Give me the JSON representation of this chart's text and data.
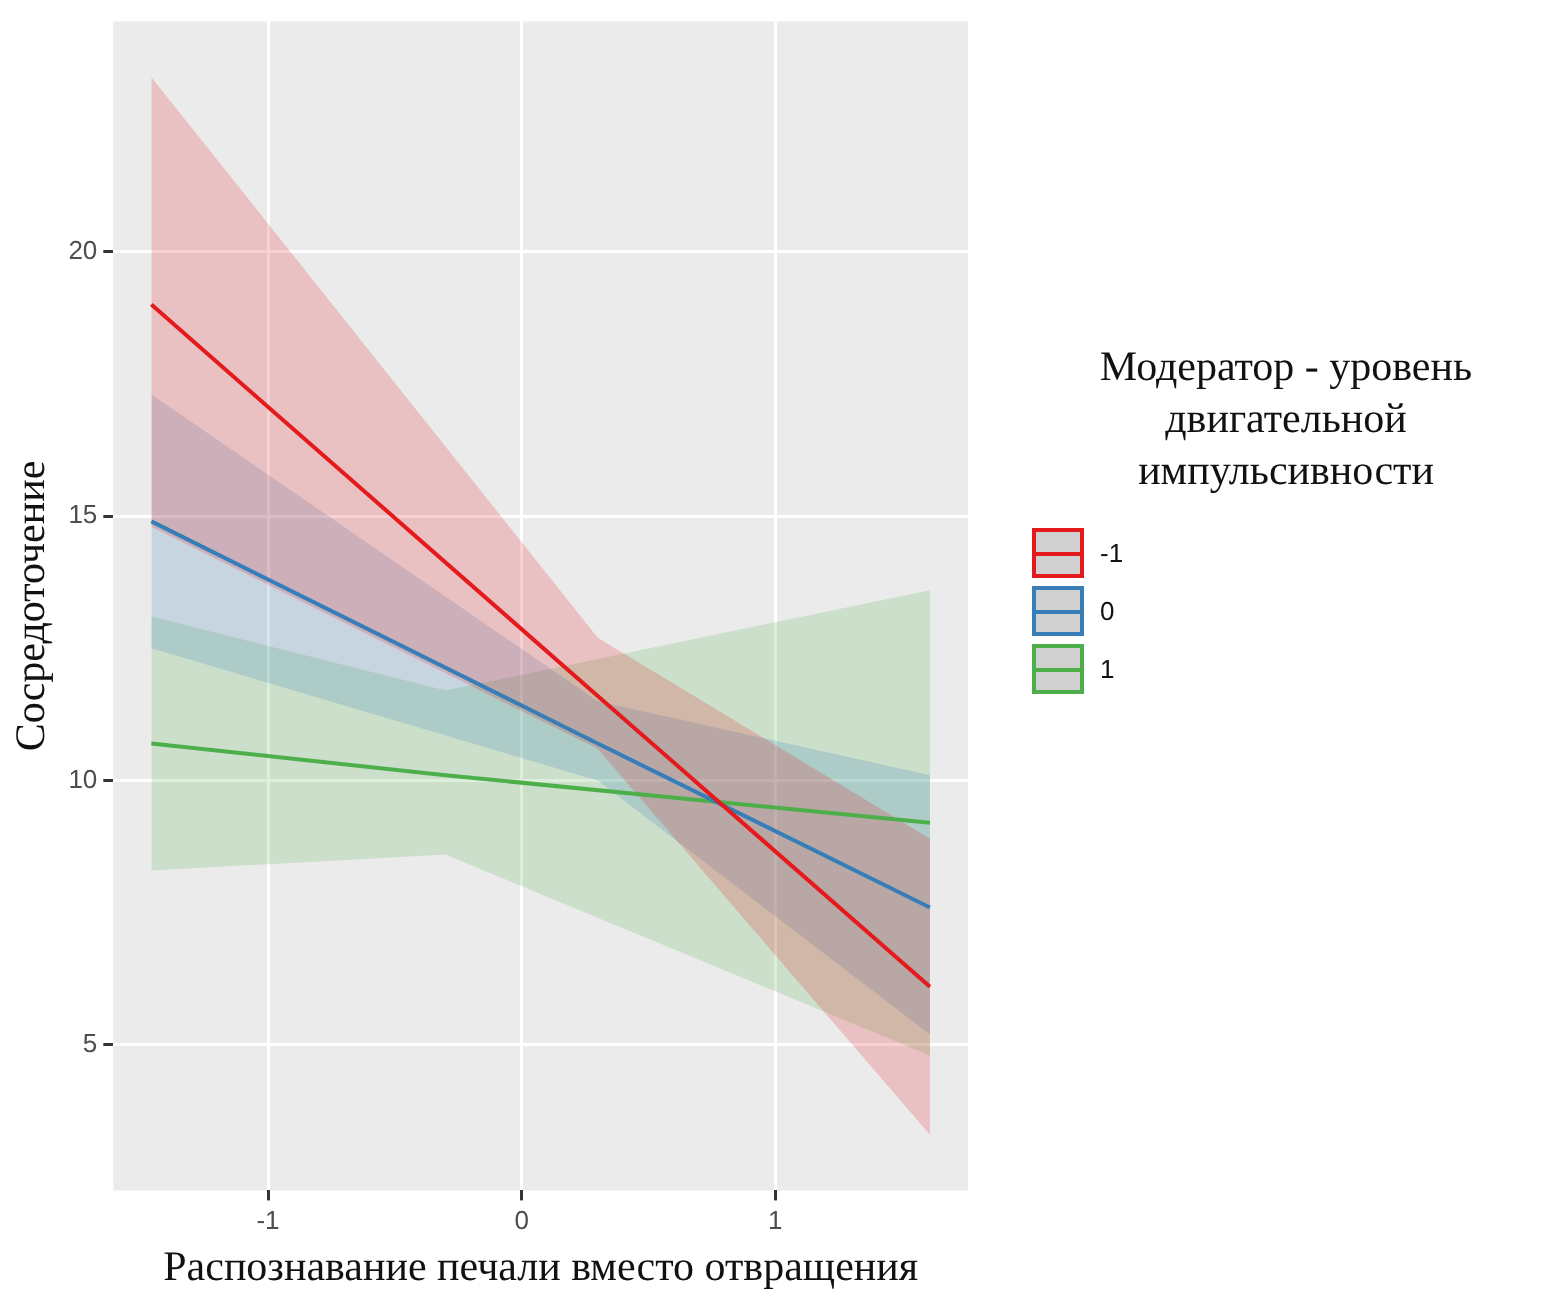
{
  "chart_data": {
    "type": "line",
    "xlabel": "Распознавание печали вместо отвращения",
    "ylabel": "Сосредоточение",
    "legend_title": "Модератор - уровень двигательной импульсивности",
    "legend": "right",
    "grid": true,
    "xlim": [
      -1.61,
      1.76
    ],
    "xticks": [
      {
        "value": -1,
        "label": "-1"
      },
      0,
      1
    ],
    "ylim": [
      2.25,
      24.35
    ],
    "yticks": [
      5,
      10,
      15,
      20
    ],
    "series": [
      {
        "name": "-1",
        "color": "#e41a1c",
        "x": [
          -1.46,
          0.3,
          1.61
        ],
        "values": [
          19.0,
          11.6,
          6.1
        ],
        "lower": [
          14.8,
          10.6,
          3.3
        ],
        "upper": [
          23.3,
          12.7,
          8.9
        ]
      },
      {
        "name": "0",
        "color": "#377eb8",
        "x": [
          -1.46,
          0.3,
          1.61
        ],
        "values": [
          14.9,
          10.7,
          7.6
        ],
        "lower": [
          12.5,
          10.0,
          5.2
        ],
        "upper": [
          17.3,
          11.5,
          10.1
        ]
      },
      {
        "name": "1",
        "color": "#4daf4a",
        "x": [
          -1.46,
          -0.3,
          1.61
        ],
        "values": [
          10.7,
          10.1,
          9.2
        ],
        "lower": [
          8.3,
          8.6,
          4.8
        ],
        "upper": [
          13.1,
          11.7,
          13.6
        ]
      }
    ]
  }
}
